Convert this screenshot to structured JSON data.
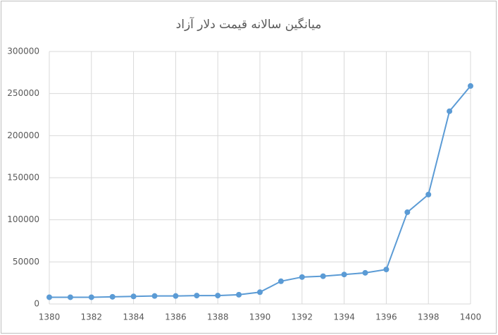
{
  "chart_data": {
    "type": "line",
    "title": "میانگین سالانه قیمت دلار آزاد",
    "x": [
      1380,
      1381,
      1382,
      1383,
      1384,
      1385,
      1386,
      1387,
      1388,
      1389,
      1390,
      1391,
      1392,
      1393,
      1394,
      1395,
      1396,
      1397,
      1398,
      1399,
      1400
    ],
    "series": [
      {
        "color": "#5b9bd5",
        "values": [
          8000,
          8000,
          8000,
          8500,
          9000,
          9500,
          9500,
          10000,
          10000,
          11000,
          14000,
          27000,
          32000,
          33000,
          35000,
          37000,
          41000,
          109000,
          130000,
          229000,
          259000
        ]
      }
    ],
    "xlim": [
      1380,
      1400
    ],
    "xticks": [
      1380,
      1382,
      1384,
      1386,
      1388,
      1390,
      1392,
      1394,
      1396,
      1398,
      1400
    ],
    "ylim": [
      0,
      300000
    ],
    "yticks": [
      0,
      50000,
      100000,
      150000,
      200000,
      250000,
      300000
    ],
    "grid": true
  }
}
